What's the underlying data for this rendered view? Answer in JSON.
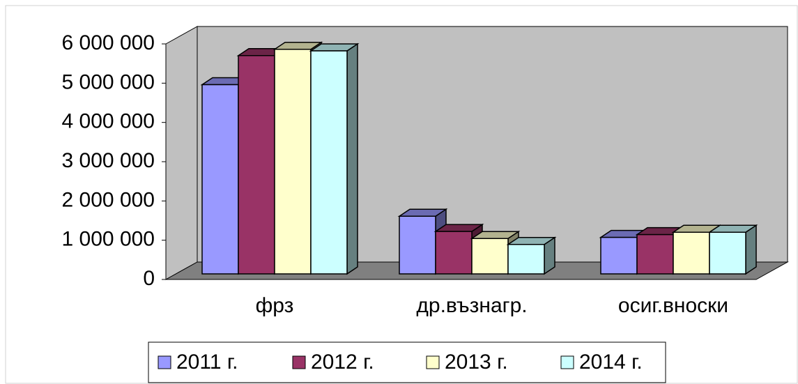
{
  "chart_data": {
    "type": "bar3d",
    "categories": [
      "фрз",
      "др.възнагр.",
      "осиг.вноски"
    ],
    "series": [
      {
        "name": "2011 г.",
        "color": "#9999ff",
        "values": [
          4820000,
          1470000,
          930000
        ]
      },
      {
        "name": "2012 г.",
        "color": "#993366",
        "values": [
          5560000,
          1080000,
          1000000
        ]
      },
      {
        "name": "2013 г.",
        "color": "#ffffcc",
        "values": [
          5720000,
          900000,
          1060000
        ]
      },
      {
        "name": "2014 г.",
        "color": "#ccffff",
        "values": [
          5680000,
          750000,
          1060000
        ]
      }
    ],
    "ylim": [
      0,
      6000000
    ],
    "yticks": [
      0,
      {
        "value": 1000000,
        "label": "1 000 000"
      },
      {
        "value": 2000000,
        "label": "2 000 000"
      },
      {
        "value": 3000000,
        "label": "3 000 000"
      },
      {
        "value": 4000000,
        "label": "4 000 000"
      },
      {
        "value": 5000000,
        "label": "5 000 000"
      },
      {
        "value": 6000000,
        "label": "6 000 000"
      }
    ],
    "legend": "bottom"
  }
}
